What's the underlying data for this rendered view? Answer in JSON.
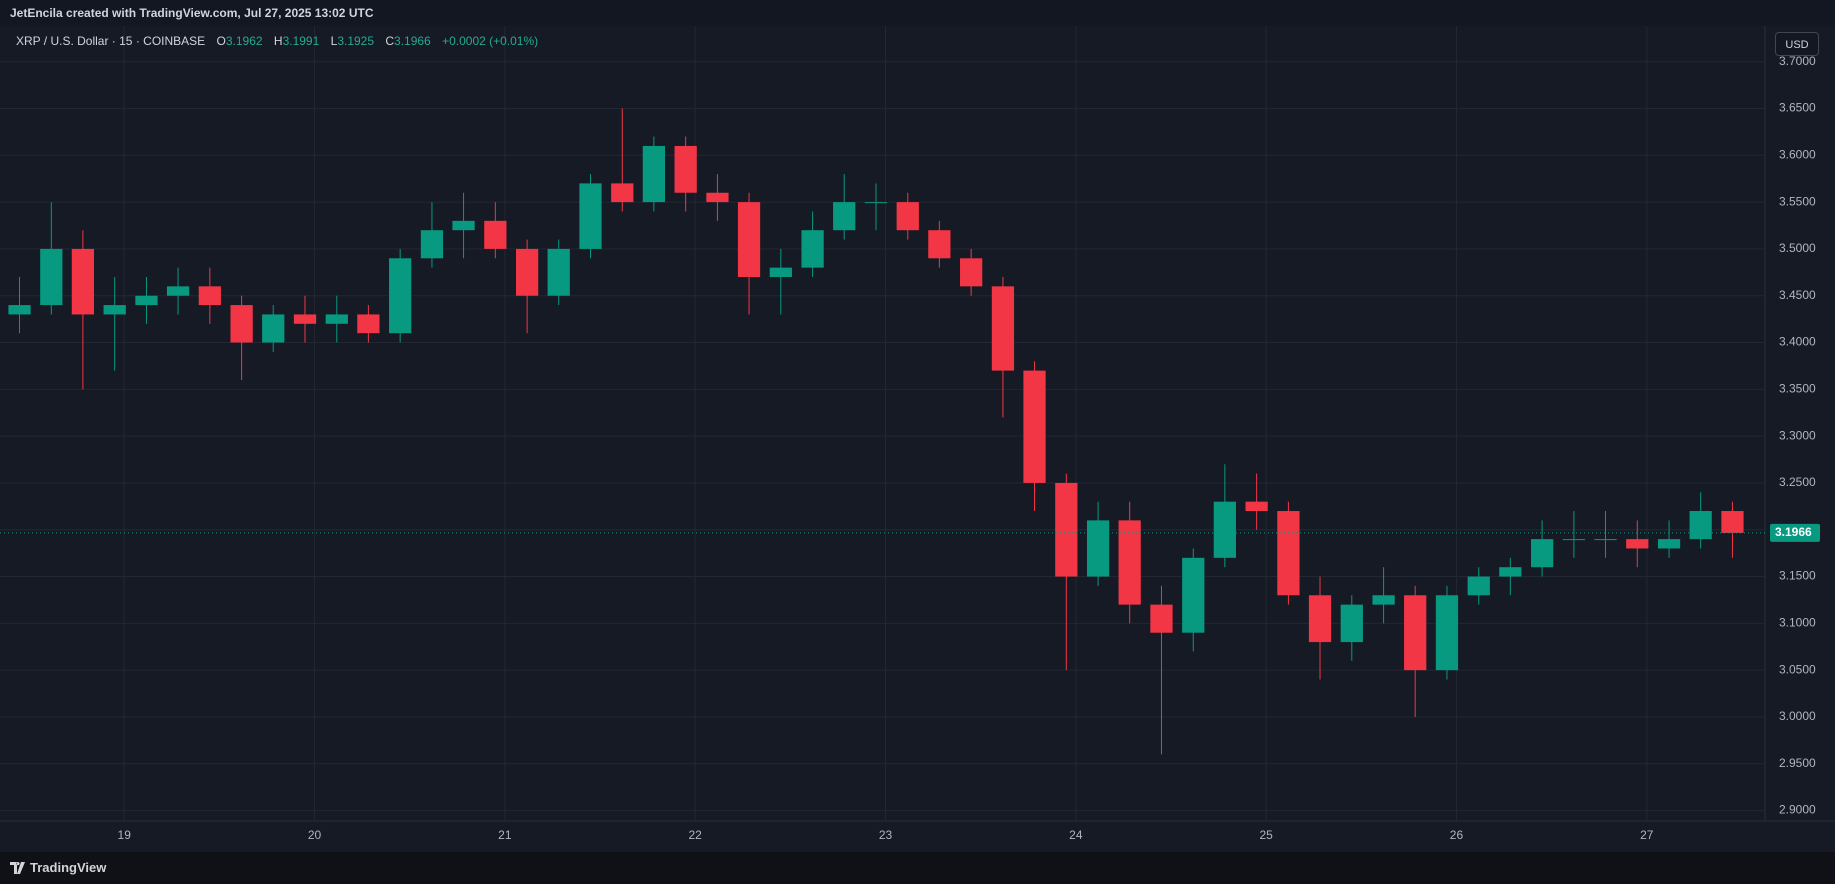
{
  "header": {
    "attribution": "JetEncila created with TradingView.com, Jul 27, 2025 13:02 UTC"
  },
  "legend": {
    "symbol": "XRP / U.S. Dollar · 15 · COINBASE",
    "open_label": "O",
    "open": "3.1962",
    "high_label": "H",
    "high": "3.1991",
    "low_label": "L",
    "low": "3.1925",
    "close_label": "C",
    "close": "3.1966",
    "change": "+0.0002 (+0.01%)"
  },
  "currency_button": "USD",
  "footer": {
    "brand": "TradingView"
  },
  "chart_data": {
    "type": "candlestick",
    "up_color": "#089981",
    "down_color": "#f23645",
    "grid": true,
    "xlim": [
      18.4,
      27.6
    ],
    "xticks": [
      19,
      20,
      21,
      22,
      23,
      24,
      25,
      26,
      27
    ],
    "ylim": [
      2.891,
      3.736
    ],
    "yticks": [
      {
        "value": 2.9,
        "label": "2.9000"
      },
      {
        "value": 2.95,
        "label": "2.9500"
      },
      {
        "value": 3.0,
        "label": "3.0000"
      },
      {
        "value": 3.05,
        "label": "3.0500"
      },
      {
        "value": 3.1,
        "label": "3.1000"
      },
      {
        "value": 3.15,
        "label": "3.1500"
      },
      {
        "value": 3.2,
        "label": "3.2000"
      },
      {
        "value": 3.25,
        "label": "3.2500"
      },
      {
        "value": 3.3,
        "label": "3.3000"
      },
      {
        "value": 3.35,
        "label": "3.3500"
      },
      {
        "value": 3.4,
        "label": "3.4000"
      },
      {
        "value": 3.45,
        "label": "3.4500"
      },
      {
        "value": 3.5,
        "label": "3.5000"
      },
      {
        "value": 3.55,
        "label": "3.5500"
      },
      {
        "value": 3.6,
        "label": "3.6000"
      },
      {
        "value": 3.65,
        "label": "3.6500"
      },
      {
        "value": 3.7,
        "label": "3.7000"
      }
    ],
    "last_price": 3.1966,
    "x": [
      18.45,
      18.617,
      18.783,
      18.95,
      19.117,
      19.283,
      19.45,
      19.617,
      19.783,
      19.95,
      20.117,
      20.283,
      20.45,
      20.617,
      20.783,
      20.95,
      21.117,
      21.283,
      21.45,
      21.617,
      21.783,
      21.95,
      22.117,
      22.283,
      22.45,
      22.617,
      22.783,
      22.95,
      23.117,
      23.283,
      23.45,
      23.617,
      23.783,
      23.95,
      24.117,
      24.283,
      24.45,
      24.617,
      24.783,
      24.95,
      25.117,
      25.283,
      25.45,
      25.617,
      25.783,
      25.95,
      26.117,
      26.283,
      26.45,
      26.617,
      26.783,
      26.95,
      27.117,
      27.283,
      27.45
    ],
    "open": [
      3.43,
      3.44,
      3.5,
      3.43,
      3.44,
      3.45,
      3.46,
      3.44,
      3.4,
      3.43,
      3.42,
      3.43,
      3.41,
      3.49,
      3.52,
      3.53,
      3.5,
      3.45,
      3.5,
      3.57,
      3.55,
      3.61,
      3.56,
      3.55,
      3.47,
      3.48,
      3.52,
      3.55,
      3.55,
      3.52,
      3.49,
      3.46,
      3.37,
      3.25,
      3.15,
      3.21,
      3.12,
      3.09,
      3.17,
      3.23,
      3.22,
      3.13,
      3.08,
      3.12,
      3.13,
      3.05,
      3.13,
      3.15,
      3.16,
      3.19,
      3.19,
      3.19,
      3.18,
      3.19,
      3.22
    ],
    "high": [
      3.47,
      3.55,
      3.52,
      3.47,
      3.47,
      3.48,
      3.48,
      3.45,
      3.44,
      3.45,
      3.45,
      3.44,
      3.5,
      3.55,
      3.56,
      3.55,
      3.51,
      3.51,
      3.58,
      3.65,
      3.62,
      3.62,
      3.58,
      3.56,
      3.5,
      3.54,
      3.58,
      3.57,
      3.56,
      3.53,
      3.5,
      3.47,
      3.38,
      3.26,
      3.23,
      3.23,
      3.14,
      3.18,
      3.27,
      3.26,
      3.23,
      3.15,
      3.13,
      3.16,
      3.14,
      3.14,
      3.16,
      3.17,
      3.21,
      3.22,
      3.22,
      3.21,
      3.21,
      3.24,
      3.23
    ],
    "low": [
      3.41,
      3.43,
      3.35,
      3.37,
      3.42,
      3.43,
      3.42,
      3.36,
      3.39,
      3.4,
      3.4,
      3.4,
      3.4,
      3.48,
      3.49,
      3.49,
      3.41,
      3.44,
      3.49,
      3.54,
      3.54,
      3.54,
      3.53,
      3.43,
      3.43,
      3.47,
      3.51,
      3.52,
      3.51,
      3.48,
      3.45,
      3.32,
      3.22,
      3.05,
      3.14,
      3.1,
      2.96,
      3.07,
      3.16,
      3.2,
      3.12,
      3.04,
      3.06,
      3.1,
      3.0,
      3.04,
      3.12,
      3.13,
      3.15,
      3.17,
      3.17,
      3.16,
      3.17,
      3.18,
      3.17
    ],
    "close": [
      3.44,
      3.5,
      3.43,
      3.44,
      3.45,
      3.46,
      3.44,
      3.4,
      3.43,
      3.42,
      3.43,
      3.41,
      3.49,
      3.52,
      3.53,
      3.5,
      3.45,
      3.5,
      3.57,
      3.55,
      3.61,
      3.56,
      3.55,
      3.47,
      3.48,
      3.52,
      3.55,
      3.55,
      3.52,
      3.49,
      3.46,
      3.37,
      3.25,
      3.15,
      3.21,
      3.12,
      3.09,
      3.17,
      3.23,
      3.22,
      3.13,
      3.08,
      3.12,
      3.13,
      3.05,
      3.13,
      3.15,
      3.16,
      3.19,
      3.19,
      3.19,
      3.18,
      3.19,
      3.22,
      3.1966
    ]
  }
}
